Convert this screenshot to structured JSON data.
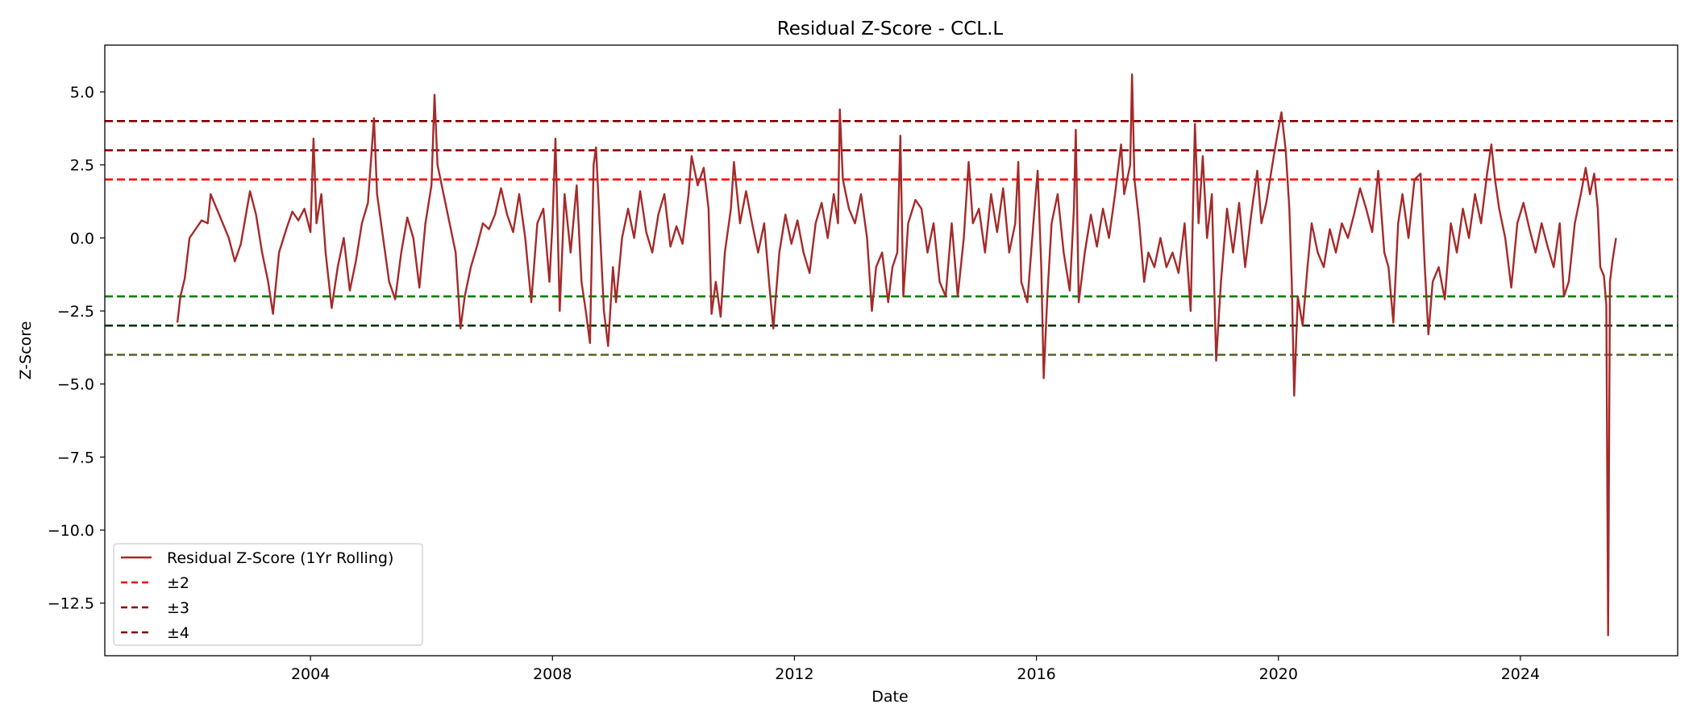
{
  "chart_data": {
    "type": "line",
    "title": "Residual Z-Score - CCL.L",
    "xlabel": "Date",
    "ylabel": "Z-Score",
    "xlim": [
      2000.6,
      2026.6
    ],
    "ylim": [
      -14.3,
      6.6
    ],
    "x_ticks": [
      2004,
      2008,
      2012,
      2016,
      2020,
      2024
    ],
    "x_tick_labels": [
      "2004",
      "2008",
      "2012",
      "2016",
      "2020",
      "2024"
    ],
    "y_ticks": [
      5.0,
      2.5,
      0.0,
      -2.5,
      -5.0,
      -7.5,
      -10.0,
      -12.5
    ],
    "y_tick_labels": [
      "5.0",
      "2.5",
      "0.0",
      "−2.5",
      "−5.0",
      "−7.5",
      "−10.0",
      "−12.5"
    ],
    "grid": false,
    "legend_position": "lower-left",
    "series": [
      {
        "name": "Residual Z-Score (1Yr Rolling)",
        "color": "#a52a2a",
        "style": "solid",
        "points": [
          [
            2001.8,
            -2.9
          ],
          [
            2001.85,
            -2.0
          ],
          [
            2001.92,
            -1.4
          ],
          [
            2002.0,
            0.0
          ],
          [
            2002.1,
            0.3
          ],
          [
            2002.2,
            0.6
          ],
          [
            2002.3,
            0.5
          ],
          [
            2002.35,
            1.5
          ],
          [
            2002.45,
            1.0
          ],
          [
            2002.55,
            0.5
          ],
          [
            2002.65,
            0.0
          ],
          [
            2002.75,
            -0.8
          ],
          [
            2002.85,
            -0.2
          ],
          [
            2003.0,
            1.6
          ],
          [
            2003.1,
            0.8
          ],
          [
            2003.2,
            -0.5
          ],
          [
            2003.3,
            -1.5
          ],
          [
            2003.38,
            -2.6
          ],
          [
            2003.48,
            -0.5
          ],
          [
            2003.6,
            0.3
          ],
          [
            2003.7,
            0.9
          ],
          [
            2003.8,
            0.6
          ],
          [
            2003.9,
            1.0
          ],
          [
            2004.0,
            0.2
          ],
          [
            2004.05,
            3.4
          ],
          [
            2004.1,
            0.5
          ],
          [
            2004.18,
            1.5
          ],
          [
            2004.25,
            -0.5
          ],
          [
            2004.35,
            -2.4
          ],
          [
            2004.45,
            -1.0
          ],
          [
            2004.55,
            0.0
          ],
          [
            2004.65,
            -1.8
          ],
          [
            2004.75,
            -0.8
          ],
          [
            2004.85,
            0.5
          ],
          [
            2004.95,
            1.2
          ],
          [
            2005.05,
            4.1
          ],
          [
            2005.1,
            1.5
          ],
          [
            2005.2,
            0.0
          ],
          [
            2005.3,
            -1.5
          ],
          [
            2005.4,
            -2.1
          ],
          [
            2005.5,
            -0.5
          ],
          [
            2005.6,
            0.7
          ],
          [
            2005.7,
            0.0
          ],
          [
            2005.8,
            -1.7
          ],
          [
            2005.9,
            0.5
          ],
          [
            2006.0,
            1.8
          ],
          [
            2006.05,
            4.9
          ],
          [
            2006.1,
            2.5
          ],
          [
            2006.2,
            1.5
          ],
          [
            2006.3,
            0.5
          ],
          [
            2006.4,
            -0.5
          ],
          [
            2006.48,
            -3.1
          ],
          [
            2006.55,
            -2.0
          ],
          [
            2006.65,
            -1.0
          ],
          [
            2006.75,
            -0.3
          ],
          [
            2006.85,
            0.5
          ],
          [
            2006.95,
            0.3
          ],
          [
            2007.05,
            0.8
          ],
          [
            2007.15,
            1.7
          ],
          [
            2007.25,
            0.8
          ],
          [
            2007.35,
            0.2
          ],
          [
            2007.45,
            1.5
          ],
          [
            2007.55,
            0.0
          ],
          [
            2007.65,
            -2.2
          ],
          [
            2007.75,
            0.5
          ],
          [
            2007.85,
            1.0
          ],
          [
            2007.95,
            -1.5
          ],
          [
            2008.0,
            0.5
          ],
          [
            2008.05,
            3.4
          ],
          [
            2008.12,
            -2.5
          ],
          [
            2008.2,
            1.5
          ],
          [
            2008.3,
            -0.5
          ],
          [
            2008.4,
            1.8
          ],
          [
            2008.48,
            -1.5
          ],
          [
            2008.55,
            -2.5
          ],
          [
            2008.62,
            -3.6
          ],
          [
            2008.68,
            2.5
          ],
          [
            2008.72,
            3.1
          ],
          [
            2008.78,
            0.5
          ],
          [
            2008.85,
            -2.5
          ],
          [
            2008.92,
            -3.7
          ],
          [
            2009.0,
            -1.0
          ],
          [
            2009.05,
            -2.2
          ],
          [
            2009.15,
            0.0
          ],
          [
            2009.25,
            1.0
          ],
          [
            2009.35,
            0.0
          ],
          [
            2009.45,
            1.6
          ],
          [
            2009.55,
            0.2
          ],
          [
            2009.65,
            -0.5
          ],
          [
            2009.75,
            0.8
          ],
          [
            2009.85,
            1.5
          ],
          [
            2009.95,
            -0.3
          ],
          [
            2010.05,
            0.4
          ],
          [
            2010.15,
            -0.2
          ],
          [
            2010.25,
            1.5
          ],
          [
            2010.3,
            2.8
          ],
          [
            2010.4,
            1.8
          ],
          [
            2010.5,
            2.4
          ],
          [
            2010.58,
            1.0
          ],
          [
            2010.63,
            -2.6
          ],
          [
            2010.7,
            -1.5
          ],
          [
            2010.78,
            -2.7
          ],
          [
            2010.85,
            -0.5
          ],
          [
            2010.95,
            1.0
          ],
          [
            2011.0,
            2.6
          ],
          [
            2011.1,
            0.5
          ],
          [
            2011.2,
            1.6
          ],
          [
            2011.3,
            0.5
          ],
          [
            2011.4,
            -0.5
          ],
          [
            2011.5,
            0.5
          ],
          [
            2011.58,
            -1.5
          ],
          [
            2011.65,
            -3.1
          ],
          [
            2011.75,
            -0.5
          ],
          [
            2011.85,
            0.8
          ],
          [
            2011.95,
            -0.2
          ],
          [
            2012.05,
            0.6
          ],
          [
            2012.15,
            -0.5
          ],
          [
            2012.25,
            -1.2
          ],
          [
            2012.35,
            0.5
          ],
          [
            2012.45,
            1.2
          ],
          [
            2012.55,
            0.0
          ],
          [
            2012.65,
            1.5
          ],
          [
            2012.72,
            0.5
          ],
          [
            2012.75,
            4.4
          ],
          [
            2012.8,
            2.0
          ],
          [
            2012.9,
            1.0
          ],
          [
            2013.0,
            0.5
          ],
          [
            2013.1,
            1.5
          ],
          [
            2013.2,
            0.0
          ],
          [
            2013.28,
            -2.5
          ],
          [
            2013.35,
            -1.0
          ],
          [
            2013.45,
            -0.5
          ],
          [
            2013.55,
            -2.2
          ],
          [
            2013.62,
            -1.0
          ],
          [
            2013.7,
            -0.5
          ],
          [
            2013.75,
            3.5
          ],
          [
            2013.8,
            -2.0
          ],
          [
            2013.88,
            0.5
          ],
          [
            2014.0,
            1.3
          ],
          [
            2014.1,
            1.0
          ],
          [
            2014.2,
            -0.5
          ],
          [
            2014.3,
            0.5
          ],
          [
            2014.4,
            -1.5
          ],
          [
            2014.5,
            -2.0
          ],
          [
            2014.6,
            0.5
          ],
          [
            2014.7,
            -2.0
          ],
          [
            2014.8,
            0.0
          ],
          [
            2014.88,
            2.6
          ],
          [
            2014.95,
            0.5
          ],
          [
            2015.05,
            1.0
          ],
          [
            2015.15,
            -0.5
          ],
          [
            2015.25,
            1.5
          ],
          [
            2015.35,
            0.2
          ],
          [
            2015.45,
            1.7
          ],
          [
            2015.55,
            -0.5
          ],
          [
            2015.65,
            0.5
          ],
          [
            2015.7,
            2.6
          ],
          [
            2015.75,
            -1.5
          ],
          [
            2015.85,
            -2.2
          ],
          [
            2015.95,
            0.5
          ],
          [
            2016.02,
            2.3
          ],
          [
            2016.08,
            -1.0
          ],
          [
            2016.12,
            -4.8
          ],
          [
            2016.18,
            -2.0
          ],
          [
            2016.25,
            0.5
          ],
          [
            2016.35,
            1.5
          ],
          [
            2016.45,
            -0.5
          ],
          [
            2016.55,
            -1.8
          ],
          [
            2016.62,
            1.0
          ],
          [
            2016.65,
            3.7
          ],
          [
            2016.7,
            -2.2
          ],
          [
            2016.8,
            -0.5
          ],
          [
            2016.9,
            0.8
          ],
          [
            2017.0,
            -0.3
          ],
          [
            2017.1,
            1.0
          ],
          [
            2017.2,
            0.0
          ],
          [
            2017.3,
            1.5
          ],
          [
            2017.4,
            3.2
          ],
          [
            2017.45,
            1.5
          ],
          [
            2017.55,
            2.5
          ],
          [
            2017.58,
            5.6
          ],
          [
            2017.62,
            2.0
          ],
          [
            2017.7,
            0.5
          ],
          [
            2017.78,
            -1.5
          ],
          [
            2017.85,
            -0.5
          ],
          [
            2017.95,
            -1.0
          ],
          [
            2018.05,
            0.0
          ],
          [
            2018.15,
            -1.0
          ],
          [
            2018.25,
            -0.5
          ],
          [
            2018.35,
            -1.2
          ],
          [
            2018.45,
            0.5
          ],
          [
            2018.55,
            -2.5
          ],
          [
            2018.62,
            3.9
          ],
          [
            2018.68,
            0.5
          ],
          [
            2018.75,
            2.8
          ],
          [
            2018.82,
            0.0
          ],
          [
            2018.9,
            1.5
          ],
          [
            2018.97,
            -4.2
          ],
          [
            2019.05,
            -1.5
          ],
          [
            2019.15,
            1.0
          ],
          [
            2019.25,
            -0.5
          ],
          [
            2019.35,
            1.2
          ],
          [
            2019.45,
            -1.0
          ],
          [
            2019.55,
            0.8
          ],
          [
            2019.65,
            2.3
          ],
          [
            2019.72,
            0.5
          ],
          [
            2019.8,
            1.2
          ],
          [
            2019.9,
            2.5
          ],
          [
            2019.98,
            3.5
          ],
          [
            2020.05,
            4.3
          ],
          [
            2020.12,
            3.0
          ],
          [
            2020.18,
            1.0
          ],
          [
            2020.22,
            -1.5
          ],
          [
            2020.26,
            -5.4
          ],
          [
            2020.32,
            -2.0
          ],
          [
            2020.4,
            -3.0
          ],
          [
            2020.48,
            -1.0
          ],
          [
            2020.55,
            0.5
          ],
          [
            2020.65,
            -0.5
          ],
          [
            2020.75,
            -1.0
          ],
          [
            2020.85,
            0.3
          ],
          [
            2020.95,
            -0.5
          ],
          [
            2021.05,
            0.5
          ],
          [
            2021.15,
            0.0
          ],
          [
            2021.25,
            0.8
          ],
          [
            2021.35,
            1.7
          ],
          [
            2021.45,
            1.0
          ],
          [
            2021.55,
            0.2
          ],
          [
            2021.65,
            2.3
          ],
          [
            2021.75,
            -0.5
          ],
          [
            2021.82,
            -1.0
          ],
          [
            2021.9,
            -2.9
          ],
          [
            2021.98,
            0.5
          ],
          [
            2022.05,
            1.5
          ],
          [
            2022.15,
            0.0
          ],
          [
            2022.25,
            2.0
          ],
          [
            2022.35,
            2.2
          ],
          [
            2022.42,
            -1.0
          ],
          [
            2022.48,
            -3.3
          ],
          [
            2022.55,
            -1.5
          ],
          [
            2022.65,
            -1.0
          ],
          [
            2022.75,
            -2.1
          ],
          [
            2022.85,
            0.5
          ],
          [
            2022.95,
            -0.5
          ],
          [
            2023.05,
            1.0
          ],
          [
            2023.15,
            0.0
          ],
          [
            2023.25,
            1.5
          ],
          [
            2023.35,
            0.5
          ],
          [
            2023.45,
            2.2
          ],
          [
            2023.52,
            3.2
          ],
          [
            2023.58,
            2.0
          ],
          [
            2023.65,
            1.0
          ],
          [
            2023.75,
            0.0
          ],
          [
            2023.85,
            -1.7
          ],
          [
            2023.95,
            0.5
          ],
          [
            2024.05,
            1.2
          ],
          [
            2024.15,
            0.3
          ],
          [
            2024.25,
            -0.5
          ],
          [
            2024.35,
            0.5
          ],
          [
            2024.45,
            -0.3
          ],
          [
            2024.55,
            -1.0
          ],
          [
            2024.65,
            0.5
          ],
          [
            2024.72,
            -2.0
          ],
          [
            2024.8,
            -1.5
          ],
          [
            2024.9,
            0.5
          ],
          [
            2025.0,
            1.5
          ],
          [
            2025.08,
            2.4
          ],
          [
            2025.15,
            1.5
          ],
          [
            2025.22,
            2.2
          ],
          [
            2025.28,
            1.0
          ],
          [
            2025.32,
            -1.0
          ],
          [
            2025.38,
            -1.3
          ],
          [
            2025.42,
            -2.3
          ],
          [
            2025.45,
            -13.6
          ],
          [
            2025.48,
            -1.5
          ],
          [
            2025.52,
            -0.8
          ],
          [
            2025.58,
            0.0
          ]
        ]
      }
    ],
    "thresholds": [
      {
        "name": "±2",
        "color": "#ff0000",
        "values": [
          2,
          -2
        ],
        "colors_by_sign": [
          "#ff0000",
          "#008000"
        ]
      },
      {
        "name": "±3",
        "color": "#8b0000",
        "values": [
          3,
          -3
        ],
        "colors_by_sign": [
          "#8b0000",
          "#003300"
        ]
      },
      {
        "name": "±4",
        "color": "#800000",
        "values": [
          4,
          -4
        ],
        "colors_by_sign": [
          "#800000",
          "#556b2f"
        ]
      }
    ],
    "legend": [
      {
        "label": "Residual Z-Score (1Yr Rolling)",
        "color": "#a52a2a",
        "style": "solid"
      },
      {
        "label": "±2",
        "color": "#ff0000",
        "style": "dashed"
      },
      {
        "label": "±3",
        "color": "#8b0000",
        "style": "dashed"
      },
      {
        "label": "±4",
        "color": "#800000",
        "style": "dashed"
      }
    ]
  }
}
